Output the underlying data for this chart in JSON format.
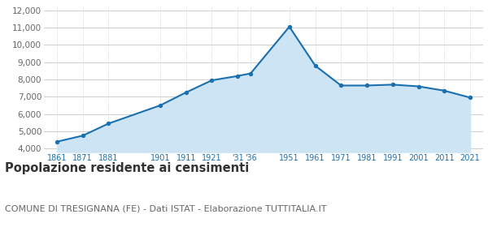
{
  "years": [
    1861,
    1871,
    1881,
    1901,
    1911,
    1921,
    1931,
    1936,
    1951,
    1961,
    1971,
    1981,
    1991,
    2001,
    2011,
    2021
  ],
  "x_labels": [
    "1861",
    "1871",
    "1881",
    "1901",
    "1911",
    "1921",
    "'31",
    "'36",
    "1951",
    "1961",
    "1971",
    "1981",
    "1991",
    "2001",
    "2011",
    "2021"
  ],
  "population": [
    4400,
    4750,
    5450,
    6500,
    7250,
    7950,
    8200,
    8350,
    11050,
    8800,
    7650,
    7650,
    7700,
    7600,
    7350,
    6950
  ],
  "line_color": "#1a6faf",
  "fill_color": "#cde4f5",
  "marker_color": "#1a6faf",
  "bg_color": "#ffffff",
  "grid_color_h": "#c8c8c8",
  "grid_color_v": "#c8c8c8",
  "ylim": [
    3800,
    12200
  ],
  "yticks": [
    4000,
    5000,
    6000,
    7000,
    8000,
    9000,
    10000,
    11000,
    12000
  ],
  "title": "Popolazione residente ai censimenti",
  "subtitle": "COMUNE DI TRESIGNANA (FE) - Dati ISTAT - Elaborazione TUTTITALIA.IT",
  "title_fontsize": 10.5,
  "subtitle_fontsize": 8.0
}
